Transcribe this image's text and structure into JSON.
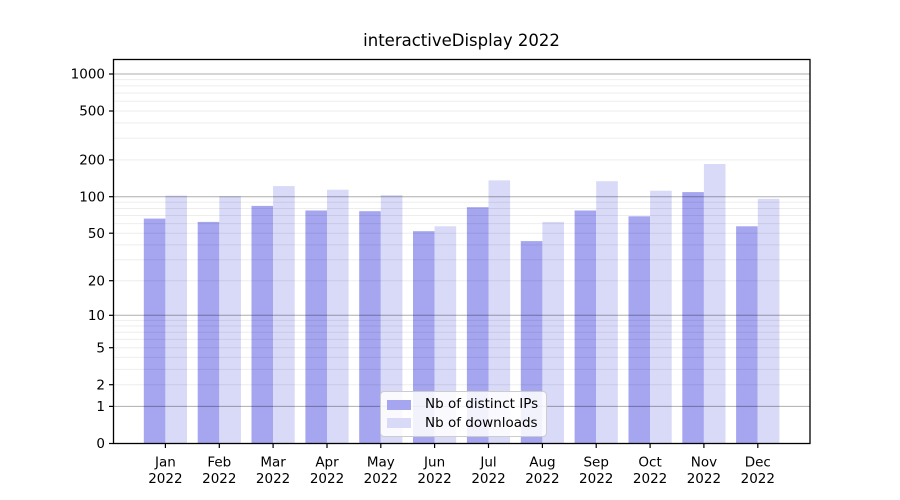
{
  "chart_data": {
    "type": "bar",
    "title": "interactiveDisplay 2022",
    "categories": [
      "Jan 2022",
      "Feb 2022",
      "Mar 2022",
      "Apr 2022",
      "May 2022",
      "Jun 2022",
      "Jul 2022",
      "Aug 2022",
      "Sep 2022",
      "Oct 2022",
      "Nov 2022",
      "Dec 2022"
    ],
    "series": [
      {
        "name": "Nb of distinct IPs",
        "color": "#a5a5f0",
        "values": [
          66,
          62,
          84,
          77,
          76,
          52,
          82,
          43,
          77,
          69,
          109,
          57
        ]
      },
      {
        "name": "Nb of downloads",
        "color": "#d9d9f8",
        "values": [
          102,
          101,
          122,
          114,
          103,
          57,
          136,
          62,
          134,
          112,
          185,
          96
        ]
      }
    ],
    "xlabel": "",
    "ylabel": "",
    "yscale": "symlog (log1p)",
    "ylim": [
      0,
      1312
    ],
    "yticks": [
      0,
      1,
      2,
      5,
      10,
      20,
      50,
      100,
      200,
      500,
      1000
    ],
    "major_grid_values": [
      1,
      10,
      100,
      1000
    ],
    "grid": "horizontal, major + minor",
    "legend_position": "lower center inside plot"
  },
  "colors": {
    "major_grid": "rgba(0,0,0,0.32)",
    "minor_grid": "rgba(0,0,0,0.07)",
    "axis": "#000000",
    "legend_border": "#cccccc"
  }
}
